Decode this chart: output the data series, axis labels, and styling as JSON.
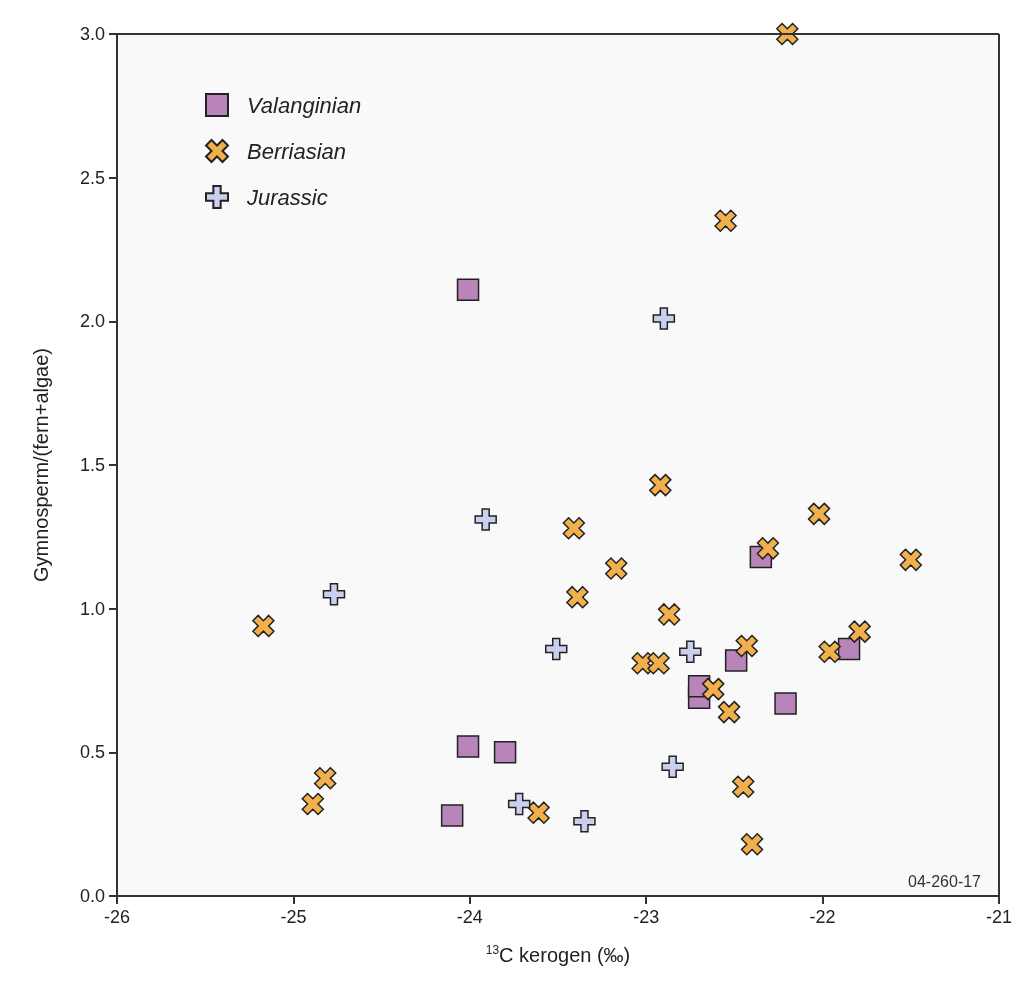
{
  "chart_data": {
    "type": "scatter",
    "xlabel": "$^{13}$C kerogen (‰)",
    "ylabel": "Gymnosperm/(fern+algae)",
    "xlim": [
      -26,
      -21
    ],
    "xticks": [
      -26,
      -25,
      -24,
      -23,
      -22,
      -21
    ],
    "ylim": [
      0,
      3
    ],
    "yticks": [
      {
        "value": 0,
        "label": "0.0"
      },
      0.5,
      {
        "value": 1,
        "label": "1.0"
      },
      1.5,
      {
        "value": 2,
        "label": "2.0"
      },
      2.5,
      {
        "value": 3,
        "label": "3.0"
      }
    ],
    "grid": false,
    "legend": "top left",
    "annotations": [
      "04-260-17"
    ],
    "series": [
      {
        "name": "Valanginian",
        "color": "#b884b9",
        "marker": "square",
        "x": [
          -24.01,
          -24.01,
          -23.8,
          -24.1,
          -22.35,
          -22.49,
          -21.85,
          -22.7,
          -22.7,
          -22.21
        ],
        "values": [
          2.11,
          0.52,
          0.5,
          0.28,
          1.18,
          0.82,
          0.86,
          0.69,
          0.73,
          0.67
        ]
      },
      {
        "name": "Berriasian",
        "color": "#f2b04c",
        "marker": "x",
        "x": [
          -22.2,
          -22.55,
          -25.17,
          -24.82,
          -24.89,
          -23.61,
          -22.92,
          -23.41,
          -22.02,
          -22.31,
          -21.5,
          -23.17,
          -23.39,
          -22.87,
          -21.79,
          -21.96,
          -22.43,
          -23.02,
          -22.93,
          -22.62,
          -22.53,
          -22.45,
          -22.4
        ],
        "values": [
          3.0,
          2.35,
          0.94,
          0.41,
          0.32,
          0.29,
          1.43,
          1.28,
          1.33,
          1.21,
          1.17,
          1.14,
          1.04,
          0.98,
          0.92,
          0.85,
          0.87,
          0.81,
          0.81,
          0.72,
          0.64,
          0.38,
          0.18
        ]
      },
      {
        "name": "Jurassic",
        "color": "#c8d0ee",
        "marker": "cross",
        "x": [
          -22.9,
          -23.91,
          -24.77,
          -23.51,
          -23.72,
          -22.75,
          -22.85,
          -23.35
        ],
        "values": [
          2.01,
          1.31,
          1.05,
          0.86,
          0.32,
          0.85,
          0.45,
          0.26
        ]
      }
    ]
  }
}
